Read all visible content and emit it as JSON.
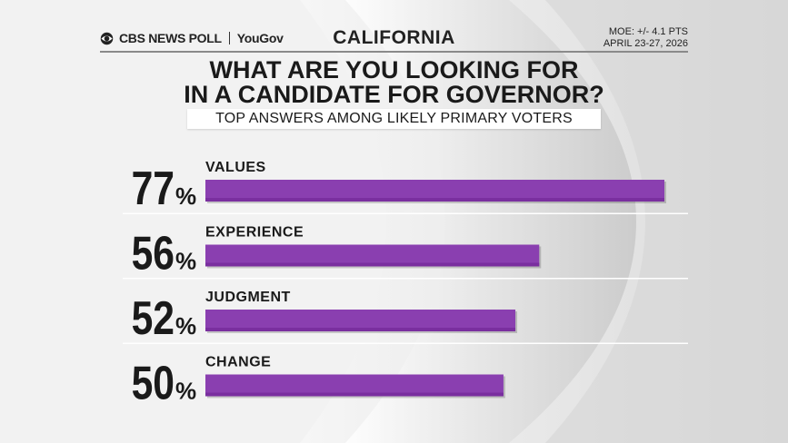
{
  "header": {
    "brand": "CBS NEWS POLL",
    "partner": "YouGov",
    "state": "CALIFORNIA",
    "moe": "MOE: +/- 4.1 PTS",
    "dates": "APRIL 23-27, 2026"
  },
  "chart_data": {
    "type": "bar",
    "title": "WHAT ARE YOU LOOKING FOR IN A CANDIDATE FOR GOVERNOR?",
    "title_lines": [
      "WHAT ARE YOU LOOKING FOR",
      "IN A CANDIDATE FOR GOVERNOR?"
    ],
    "subtitle": "TOP ANSWERS AMONG LIKELY PRIMARY VOTERS",
    "categories": [
      "VALUES",
      "EXPERIENCE",
      "JUDGMENT",
      "CHANGE"
    ],
    "values": [
      77,
      56,
      52,
      50
    ],
    "unit": "%",
    "xlim": [
      0,
      77
    ],
    "bar_color": "#8a3fb0",
    "bar_color_dark": "#7a2f9f"
  }
}
